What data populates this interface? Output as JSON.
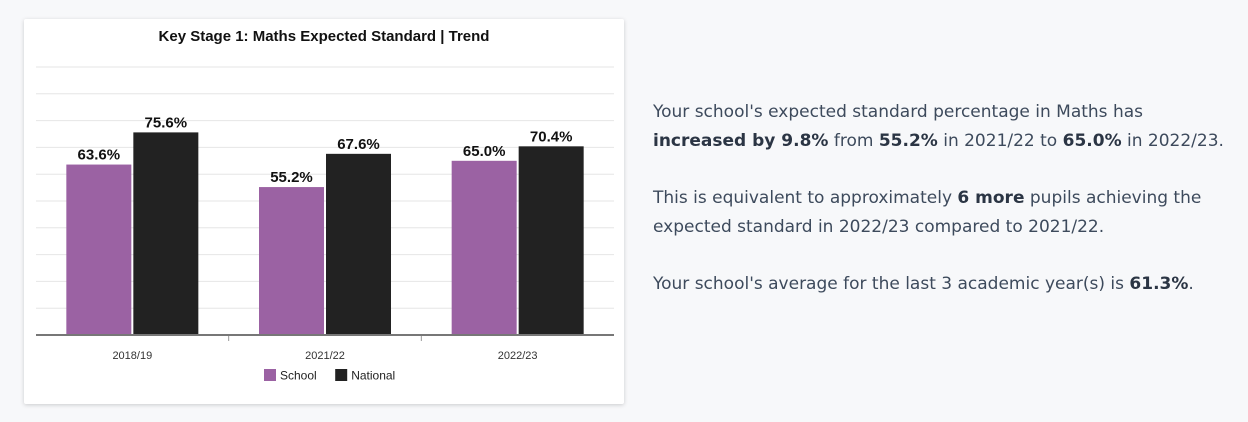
{
  "colors": {
    "school": "#9b62a3",
    "national": "#222222",
    "text": "#3d4a5c"
  },
  "chart_data": {
    "type": "bar",
    "title": "Key Stage 1: Maths Expected Standard | Trend",
    "categories": [
      "2018/19",
      "2021/22",
      "2022/23"
    ],
    "series": [
      {
        "name": "School",
        "values": [
          63.6,
          55.2,
          65.0
        ],
        "labels": [
          "63.6%",
          "55.2%",
          "65.0%"
        ],
        "color": "#9b62a3"
      },
      {
        "name": "National",
        "values": [
          75.6,
          67.6,
          70.4
        ],
        "labels": [
          "75.6%",
          "67.6%",
          "70.4%"
        ],
        "color": "#222222"
      }
    ],
    "ylim": [
      0,
      100
    ],
    "grid": true,
    "legend": "bottom-center",
    "xlabel": "",
    "ylabel": ""
  },
  "summary": {
    "p1": {
      "a": "Your school's expected standard percentage in Maths has ",
      "b": "increased by 9.8%",
      "c": " from ",
      "d": "55.2%",
      "e": " in 2021/22 to ",
      "f": "65.0%",
      "g": " in 2022/23."
    },
    "p2": {
      "a": "This is equivalent to approximately ",
      "b": "6 more",
      "c": " pupils achieving the expected standard in 2022/23 compared to 2021/22."
    },
    "p3": {
      "a": "Your school's average for the last 3 academic year(s) is ",
      "b": "61.3%",
      "c": "."
    }
  }
}
